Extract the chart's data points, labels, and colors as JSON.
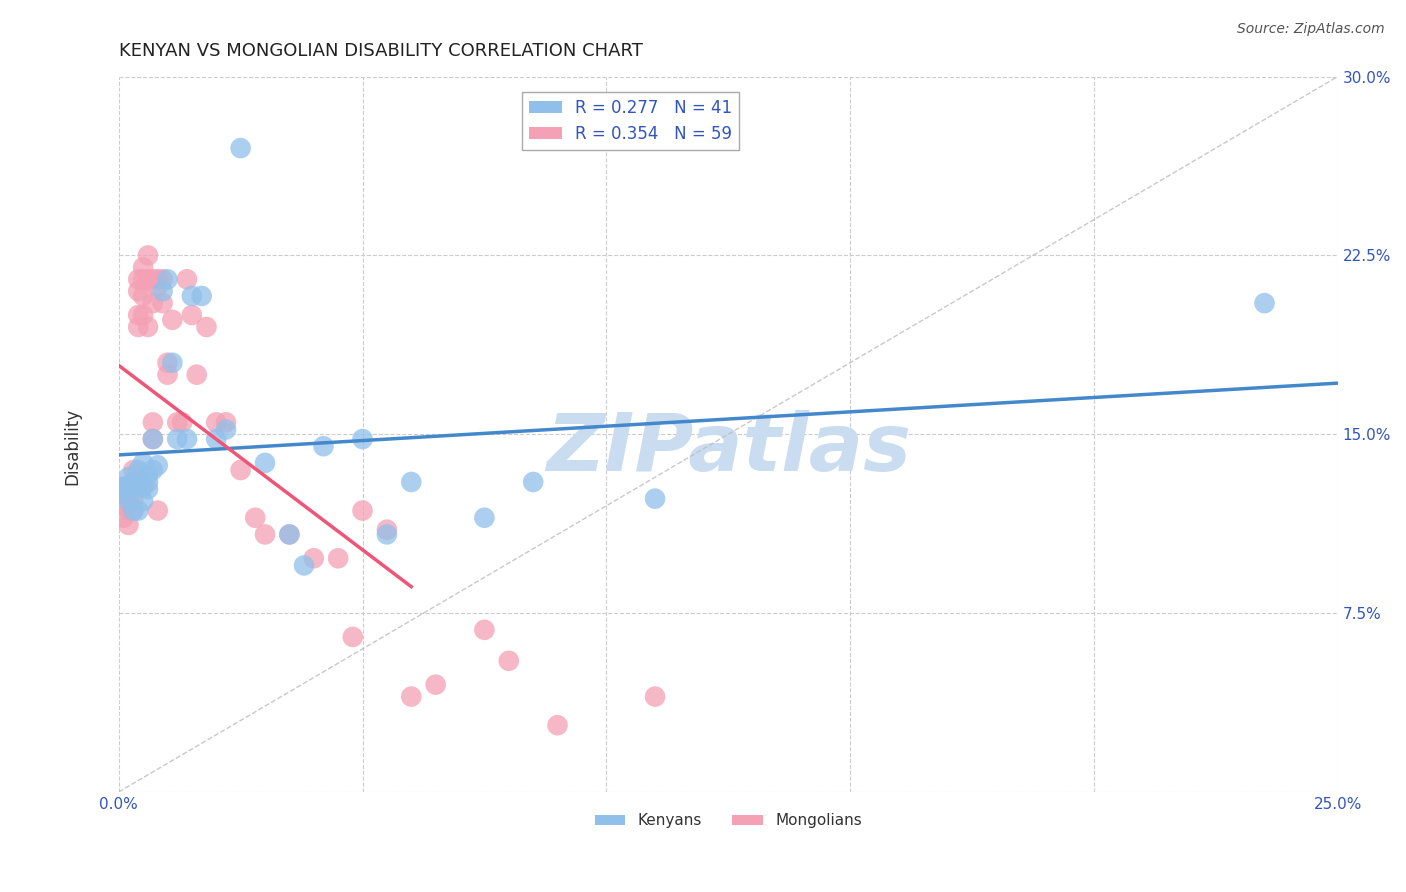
{
  "title": "KENYAN VS MONGOLIAN DISABILITY CORRELATION CHART",
  "source": "Source: ZipAtlas.com",
  "ylabel": "Disability",
  "xlim": [
    0.0,
    0.25
  ],
  "ylim": [
    0.0,
    0.3
  ],
  "xticks": [
    0.0,
    0.05,
    0.1,
    0.15,
    0.2,
    0.25
  ],
  "xticklabels": [
    "0.0%",
    "",
    "",
    "",
    "",
    "25.0%"
  ],
  "yticks": [
    0.0,
    0.075,
    0.15,
    0.225,
    0.3
  ],
  "yticklabels": [
    "",
    "7.5%",
    "15.0%",
    "22.5%",
    "30.0%"
  ],
  "kenyan_color": "#90C0EA",
  "mongolian_color": "#F4A0B5",
  "kenyan_R": 0.277,
  "kenyan_N": 41,
  "mongolian_R": 0.354,
  "mongolian_N": 59,
  "legend_label_color": "#3355BB",
  "diagonal_color": "#CCCCCC",
  "kenyan_line_color": "#4488CC",
  "mongolian_line_color": "#EE5577",
  "watermark": "ZIPatlas",
  "watermark_color": "#CADDF0",
  "kenyan_x": [
    0.001,
    0.001,
    0.002,
    0.002,
    0.002,
    0.003,
    0.003,
    0.003,
    0.004,
    0.004,
    0.004,
    0.005,
    0.005,
    0.005,
    0.006,
    0.006,
    0.006,
    0.007,
    0.007,
    0.008,
    0.009,
    0.01,
    0.011,
    0.012,
    0.014,
    0.015,
    0.017,
    0.02,
    0.022,
    0.025,
    0.03,
    0.035,
    0.038,
    0.042,
    0.05,
    0.055,
    0.06,
    0.075,
    0.085,
    0.11,
    0.235
  ],
  "kenyan_y": [
    0.128,
    0.125,
    0.132,
    0.128,
    0.122,
    0.13,
    0.128,
    0.118,
    0.135,
    0.128,
    0.118,
    0.138,
    0.128,
    0.122,
    0.133,
    0.127,
    0.13,
    0.148,
    0.135,
    0.137,
    0.21,
    0.215,
    0.18,
    0.148,
    0.148,
    0.208,
    0.208,
    0.148,
    0.152,
    0.27,
    0.138,
    0.108,
    0.095,
    0.145,
    0.148,
    0.108,
    0.13,
    0.115,
    0.13,
    0.123,
    0.205
  ],
  "mongolian_x": [
    0.001,
    0.001,
    0.001,
    0.001,
    0.002,
    0.002,
    0.002,
    0.002,
    0.003,
    0.003,
    0.003,
    0.003,
    0.004,
    0.004,
    0.004,
    0.004,
    0.005,
    0.005,
    0.005,
    0.005,
    0.005,
    0.006,
    0.006,
    0.006,
    0.007,
    0.007,
    0.007,
    0.007,
    0.008,
    0.008,
    0.008,
    0.009,
    0.009,
    0.01,
    0.01,
    0.011,
    0.012,
    0.013,
    0.014,
    0.015,
    0.016,
    0.018,
    0.02,
    0.022,
    0.025,
    0.028,
    0.03,
    0.035,
    0.04,
    0.045,
    0.048,
    0.05,
    0.055,
    0.06,
    0.065,
    0.075,
    0.08,
    0.09,
    0.11
  ],
  "mongolian_y": [
    0.128,
    0.125,
    0.12,
    0.115,
    0.128,
    0.122,
    0.118,
    0.112,
    0.135,
    0.128,
    0.123,
    0.118,
    0.215,
    0.21,
    0.2,
    0.195,
    0.22,
    0.215,
    0.208,
    0.2,
    0.128,
    0.225,
    0.215,
    0.195,
    0.215,
    0.205,
    0.155,
    0.148,
    0.215,
    0.212,
    0.118,
    0.215,
    0.205,
    0.18,
    0.175,
    0.198,
    0.155,
    0.155,
    0.215,
    0.2,
    0.175,
    0.195,
    0.155,
    0.155,
    0.135,
    0.115,
    0.108,
    0.108,
    0.098,
    0.098,
    0.065,
    0.118,
    0.11,
    0.04,
    0.045,
    0.068,
    0.055,
    0.028,
    0.04
  ]
}
